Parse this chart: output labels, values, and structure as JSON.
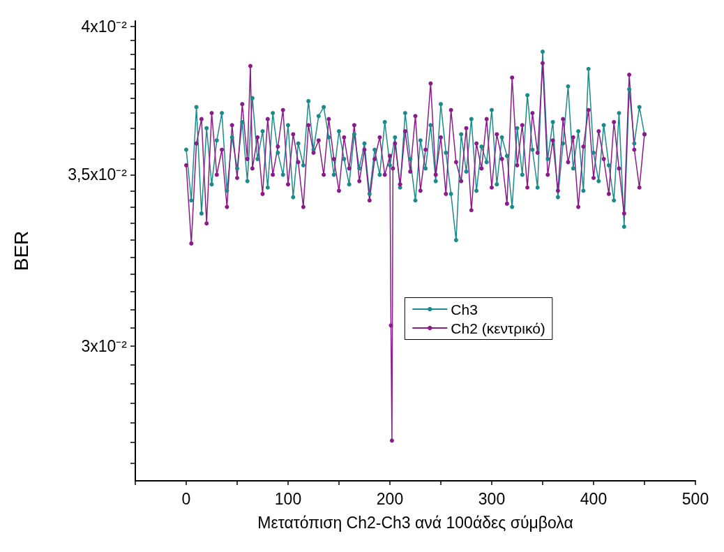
{
  "chart_data": {
    "type": "line",
    "xlabel": "Μετατόπιση Ch2-Ch3 ανά 100άδες σύμβολα",
    "ylabel": "BER",
    "log": "y",
    "marker": "circle",
    "line_style": "solid",
    "grid": false,
    "legend": "center right",
    "xlim": [
      -50,
      500
    ],
    "xticks": [
      {
        "value": -50,
        "label": null
      },
      0,
      {
        "value": 50,
        "label": null
      },
      100,
      {
        "value": 150,
        "label": null
      },
      200,
      {
        "value": 250,
        "label": null
      },
      300,
      {
        "value": 350,
        "label": null
      },
      400,
      {
        "value": 450,
        "label": null
      },
      500
    ],
    "ylim": [
      0.02657,
      0.0402
    ],
    "yticks": [
      {
        "value": 0.027,
        "label": null
      },
      {
        "value": 0.0275,
        "label": null
      },
      {
        "value": 0.028,
        "label": null
      },
      {
        "value": 0.0285,
        "label": null
      },
      {
        "value": 0.029,
        "label": null
      },
      {
        "value": 0.0295,
        "label": null
      },
      {
        "value": 0.03,
        "label": "3x10⁻²"
      },
      {
        "value": 0.0305,
        "label": null
      },
      {
        "value": 0.031,
        "label": null
      },
      {
        "value": 0.0315,
        "label": null
      },
      {
        "value": 0.032,
        "label": null
      },
      {
        "value": 0.0325,
        "label": null
      },
      {
        "value": 0.033,
        "label": null
      },
      {
        "value": 0.0335,
        "label": null
      },
      {
        "value": 0.034,
        "label": null
      },
      {
        "value": 0.0345,
        "label": null
      },
      {
        "value": 0.035,
        "label": "3,5x10⁻²"
      },
      {
        "value": 0.0355,
        "label": null
      },
      {
        "value": 0.036,
        "label": null
      },
      {
        "value": 0.0365,
        "label": null
      },
      {
        "value": 0.037,
        "label": null
      },
      {
        "value": 0.0375,
        "label": null
      },
      {
        "value": 0.038,
        "label": null
      },
      {
        "value": 0.0385,
        "label": null
      },
      {
        "value": 0.039,
        "label": null
      },
      {
        "value": 0.0395,
        "label": null
      },
      {
        "value": 0.04,
        "label": "4x10⁻²"
      }
    ],
    "series": [
      {
        "name": "Ch3",
        "color": "#1a8a8a",
        "x": [
          0,
          5,
          10,
          15,
          20,
          25,
          30,
          35,
          40,
          45,
          50,
          55,
          60,
          65,
          70,
          75,
          80,
          85,
          90,
          95,
          100,
          105,
          110,
          115,
          120,
          125,
          130,
          135,
          140,
          145,
          150,
          155,
          160,
          165,
          170,
          175,
          180,
          185,
          190,
          195,
          200,
          205,
          210,
          215,
          220,
          225,
          230,
          235,
          240,
          245,
          250,
          255,
          260,
          265,
          270,
          275,
          280,
          285,
          290,
          295,
          300,
          305,
          310,
          315,
          320,
          325,
          330,
          335,
          340,
          345,
          350,
          355,
          360,
          365,
          370,
          375,
          380,
          385,
          390,
          395,
          400,
          405,
          410,
          415,
          420,
          425,
          430,
          435,
          440,
          445,
          450
        ],
        "values": [
          0.0358,
          0.0342,
          0.0372,
          0.0338,
          0.0365,
          0.0347,
          0.0361,
          0.037,
          0.0345,
          0.0362,
          0.0352,
          0.0367,
          0.0348,
          0.0375,
          0.0355,
          0.0364,
          0.0346,
          0.037,
          0.0357,
          0.035,
          0.0366,
          0.0343,
          0.036,
          0.0353,
          0.0374,
          0.0358,
          0.0369,
          0.0372,
          0.0362,
          0.035,
          0.0364,
          0.0355,
          0.0347,
          0.0363,
          0.0352,
          0.036,
          0.0344,
          0.0358,
          0.035,
          0.0367,
          0.0353,
          0.0362,
          0.0346,
          0.037,
          0.0355,
          0.0342,
          0.0361,
          0.0352,
          0.0366,
          0.0348,
          0.0373,
          0.0357,
          0.0344,
          0.033,
          0.0363,
          0.0351,
          0.0368,
          0.0345,
          0.0359,
          0.0354,
          0.0371,
          0.0347,
          0.0362,
          0.0356,
          0.034,
          0.0365,
          0.035,
          0.0376,
          0.0358,
          0.0346,
          0.0391,
          0.0355,
          0.0367,
          0.0343,
          0.036,
          0.0379,
          0.0352,
          0.0364,
          0.0345,
          0.0385,
          0.0357,
          0.0348,
          0.0366,
          0.0353,
          0.0342,
          0.037,
          0.0334,
          0.0378,
          0.036,
          0.0372,
          0.0363
        ]
      },
      {
        "name": "Ch2 (κεντρικό)",
        "color": "#8b1a8b",
        "x": [
          0,
          5,
          10,
          15,
          20,
          25,
          30,
          35,
          40,
          45,
          50,
          55,
          60,
          63,
          65,
          70,
          75,
          80,
          85,
          90,
          95,
          100,
          105,
          110,
          115,
          120,
          125,
          130,
          135,
          140,
          145,
          150,
          155,
          160,
          165,
          170,
          175,
          180,
          185,
          190,
          195,
          200,
          201,
          202,
          203,
          205,
          210,
          215,
          220,
          225,
          230,
          235,
          240,
          245,
          250,
          255,
          260,
          265,
          270,
          275,
          280,
          285,
          290,
          295,
          300,
          305,
          310,
          315,
          320,
          325,
          330,
          335,
          340,
          345,
          350,
          355,
          360,
          365,
          370,
          375,
          380,
          385,
          390,
          395,
          400,
          405,
          410,
          415,
          420,
          425,
          430,
          435,
          440,
          445,
          450
        ],
        "values": [
          0.0353,
          0.0329,
          0.036,
          0.0368,
          0.0335,
          0.037,
          0.035,
          0.0358,
          0.034,
          0.0366,
          0.0349,
          0.0373,
          0.0355,
          0.0386,
          0.0352,
          0.0362,
          0.0344,
          0.0368,
          0.035,
          0.0359,
          0.0371,
          0.0347,
          0.0363,
          0.0354,
          0.034,
          0.0366,
          0.0357,
          0.0361,
          0.035,
          0.0368,
          0.0355,
          0.0345,
          0.0362,
          0.0352,
          0.0366,
          0.0348,
          0.0358,
          0.0342,
          0.0355,
          0.0362,
          0.035,
          0.0356,
          0.03056,
          0.02755,
          0.0352,
          0.036,
          0.0347,
          0.0364,
          0.0351,
          0.0369,
          0.0345,
          0.0358,
          0.038,
          0.035,
          0.0362,
          0.0344,
          0.0371,
          0.0354,
          0.0348,
          0.0365,
          0.0339,
          0.036,
          0.0352,
          0.0368,
          0.0346,
          0.0363,
          0.0355,
          0.0341,
          0.0382,
          0.0353,
          0.0366,
          0.0346,
          0.037,
          0.0357,
          0.0387,
          0.035,
          0.0361,
          0.0345,
          0.0368,
          0.0354,
          0.0362,
          0.034,
          0.0359,
          0.0371,
          0.0349,
          0.0364,
          0.0355,
          0.0344,
          0.0367,
          0.0352,
          0.0338,
          0.0383,
          0.0358,
          0.0346,
          0.0363
        ]
      }
    ]
  }
}
